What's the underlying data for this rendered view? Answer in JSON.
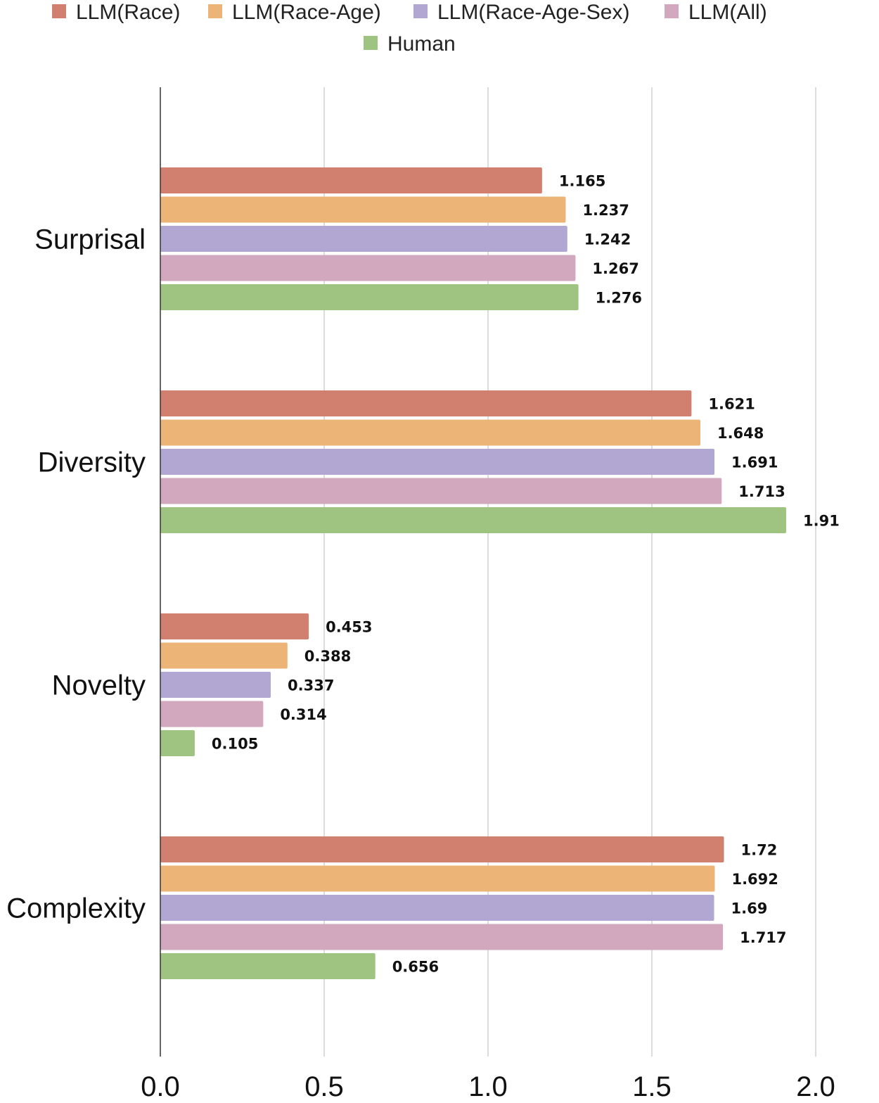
{
  "chart_data": {
    "type": "bar",
    "orientation": "horizontal",
    "categories": [
      "Surprisal",
      "Diversity",
      "Novelty",
      "Complexity"
    ],
    "series": [
      {
        "name": "LLM(Race)",
        "color": "#d18070",
        "values": [
          1.165,
          1.621,
          0.453,
          1.72
        ]
      },
      {
        "name": "LLM(Race-Age)",
        "color": "#ecb577",
        "values": [
          1.237,
          1.648,
          0.388,
          1.692
        ]
      },
      {
        "name": "LLM(Race-Age-Sex)",
        "color": "#b2a6d3",
        "values": [
          1.242,
          1.691,
          0.337,
          1.69
        ]
      },
      {
        "name": "LLM(All)",
        "color": "#d1a8be",
        "values": [
          1.267,
          1.713,
          0.314,
          1.717
        ]
      },
      {
        "name": "Human",
        "color": "#9fc482",
        "values": [
          1.276,
          1.91,
          0.105,
          0.656
        ]
      }
    ],
    "value_labels": [
      [
        "1.165",
        "1.621",
        "0.453",
        "1.72"
      ],
      [
        "1.237",
        "1.648",
        "0.388",
        "1.692"
      ],
      [
        "1.242",
        "1.691",
        "0.337",
        "1.69"
      ],
      [
        "1.267",
        "1.713",
        "0.314",
        "1.717"
      ],
      [
        "1.276",
        "1.91",
        "0.105",
        "0.656"
      ]
    ],
    "xlim": [
      0,
      2
    ],
    "xticks": [
      0,
      0.5,
      1,
      1.5,
      2
    ],
    "xtick_labels": [
      "0.0",
      "0.5",
      "1.0",
      "1.5",
      "2.0"
    ],
    "grid": true,
    "legend_position": "top"
  }
}
